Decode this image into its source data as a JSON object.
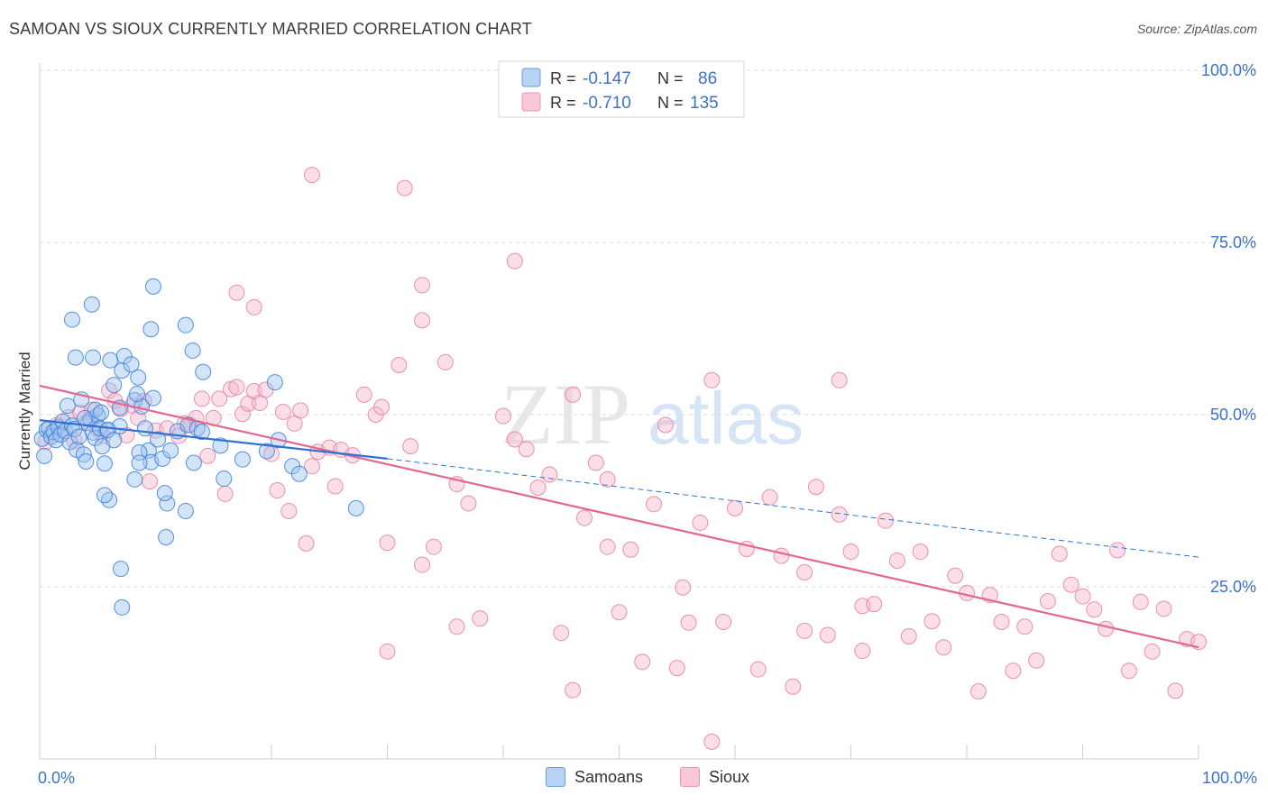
{
  "header": {
    "title": "SAMOAN VS SIOUX CURRENTLY MARRIED CORRELATION CHART",
    "source": "Source: ZipAtlas.com"
  },
  "colors": {
    "samoans_fill": "#9cc3f0",
    "samoans_stroke": "#3b7fd6",
    "samoans_line": "#2f72d0",
    "sioux_fill": "#f7b6cb",
    "sioux_stroke": "#e67fa2",
    "sioux_line": "#e4678f",
    "axis_text": "#3c72c8",
    "grid": "#dddddd"
  },
  "watermark": {
    "part1": "ZIP",
    "part2": "atlas"
  },
  "chart_data": {
    "type": "scatter",
    "title": "SAMOAN VS SIOUX CURRENTLY MARRIED CORRELATION CHART",
    "xlabel": "",
    "ylabel": "Currently Married",
    "xlim": [
      0,
      100
    ],
    "ylim": [
      0,
      100
    ],
    "x_tick_labels": [
      "0.0%",
      "100.0%"
    ],
    "y_ticks": [
      25,
      50,
      75,
      100
    ],
    "y_tick_labels": [
      "25.0%",
      "50.0%",
      "75.0%",
      "100.0%"
    ],
    "grid": true,
    "legend": {
      "placement": "top-center",
      "rows": [
        {
          "series": "Samoans",
          "r_label": "R =",
          "r_value": "-0.147",
          "n_label": "N =",
          "n_value": "86"
        },
        {
          "series": "Sioux",
          "r_label": "R =",
          "r_value": "-0.710",
          "n_label": "N =",
          "n_value": "135"
        }
      ]
    },
    "bottom_legend": [
      "Samoans",
      "Sioux"
    ],
    "series": [
      {
        "name": "Samoans",
        "trend": {
          "x0": 0,
          "y0": 49.2,
          "x1": 30,
          "y1": 43.6,
          "dash_x1": 100,
          "dash_y1": 29.3
        },
        "points": [
          [
            0.2,
            46.5
          ],
          [
            0.4,
            44
          ],
          [
            0.6,
            47.8
          ],
          [
            0.8,
            48
          ],
          [
            1,
            46.8
          ],
          [
            1.2,
            47.5
          ],
          [
            1.4,
            46.3
          ],
          [
            1.6,
            48.2
          ],
          [
            1.8,
            47.1
          ],
          [
            2,
            49
          ],
          [
            2.2,
            47.6
          ],
          [
            2.4,
            51.3
          ],
          [
            2.6,
            46
          ],
          [
            2.8,
            48.4
          ],
          [
            3,
            47.9
          ],
          [
            3.2,
            44.9
          ],
          [
            3.4,
            46.8
          ],
          [
            3.6,
            52.2
          ],
          [
            3.8,
            44.2
          ],
          [
            4,
            43.2
          ],
          [
            4.2,
            48.8
          ],
          [
            4.4,
            49.3
          ],
          [
            4.6,
            47.4
          ],
          [
            4.8,
            46.6
          ],
          [
            5,
            49.9
          ],
          [
            5.2,
            48
          ],
          [
            5.4,
            45.4
          ],
          [
            5.6,
            42.9
          ],
          [
            3.1,
            58.3
          ],
          [
            2.8,
            63.8
          ],
          [
            4.6,
            58.3
          ],
          [
            4.5,
            66
          ],
          [
            4.8,
            50.7
          ],
          [
            5.3,
            50.3
          ],
          [
            5.8,
            47.7
          ],
          [
            6.1,
            57.9
          ],
          [
            6.4,
            54.3
          ],
          [
            6.9,
            51
          ],
          [
            7.1,
            56.4
          ],
          [
            7.3,
            58.5
          ],
          [
            7.9,
            57.3
          ],
          [
            8.2,
            52.1
          ],
          [
            8.5,
            55.4
          ],
          [
            8.8,
            51.2
          ],
          [
            9.1,
            48
          ],
          [
            9.4,
            44.8
          ],
          [
            9.6,
            43.1
          ],
          [
            9.8,
            52.4
          ],
          [
            10.2,
            46.4
          ],
          [
            10.6,
            43.6
          ],
          [
            11.3,
            44.8
          ],
          [
            11.9,
            47.6
          ],
          [
            12.8,
            48.5
          ],
          [
            8.6,
            44.5
          ],
          [
            9.8,
            68.6
          ],
          [
            9.6,
            62.4
          ],
          [
            11,
            37.1
          ],
          [
            10.8,
            38.6
          ],
          [
            10.9,
            32.2
          ],
          [
            12.6,
            36
          ],
          [
            12.6,
            63
          ],
          [
            13.2,
            59.3
          ],
          [
            13.6,
            48
          ],
          [
            14,
            47.5
          ],
          [
            13.3,
            43
          ],
          [
            15.6,
            45.5
          ],
          [
            17.5,
            43.5
          ],
          [
            14.1,
            56.2
          ],
          [
            15.9,
            40.7
          ],
          [
            19.6,
            44.7
          ],
          [
            20.6,
            46.3
          ],
          [
            20.3,
            54.7
          ],
          [
            21.8,
            42.5
          ],
          [
            22.4,
            41.4
          ],
          [
            27.3,
            36.4
          ],
          [
            6,
            37.6
          ],
          [
            5.6,
            38.3
          ],
          [
            7,
            27.6
          ],
          [
            7.1,
            22
          ],
          [
            8.2,
            40.6
          ],
          [
            8.6,
            43
          ],
          [
            6.9,
            48.3
          ],
          [
            5.9,
            47.8
          ],
          [
            3.9,
            49.5
          ],
          [
            6.4,
            46.3
          ],
          [
            8.4,
            53
          ]
        ]
      },
      {
        "name": "Sioux",
        "trend": {
          "x0": 0,
          "y0": 54.2,
          "x1": 100,
          "y1": 16.2
        },
        "points": [
          [
            0.5,
            46
          ],
          [
            1,
            47.4
          ],
          [
            1.5,
            48.5
          ],
          [
            2,
            47.2
          ],
          [
            2.5,
            49.6
          ],
          [
            3,
            46.2
          ],
          [
            3.5,
            50.3
          ],
          [
            4,
            48.8
          ],
          [
            4.5,
            50.7
          ],
          [
            5,
            48
          ],
          [
            5.5,
            46.9
          ],
          [
            6,
            53.5
          ],
          [
            6.5,
            52
          ],
          [
            7,
            50.8
          ],
          [
            7.5,
            47
          ],
          [
            8,
            51.3
          ],
          [
            8.5,
            49.5
          ],
          [
            9,
            52
          ],
          [
            9.5,
            40.3
          ],
          [
            10,
            47.7
          ],
          [
            11,
            48
          ],
          [
            12,
            46.9
          ],
          [
            12.5,
            48.7
          ],
          [
            13,
            48.5
          ],
          [
            13.5,
            49.5
          ],
          [
            14,
            52.3
          ],
          [
            14.5,
            44
          ],
          [
            15,
            49.5
          ],
          [
            15.5,
            52.3
          ],
          [
            16,
            38.5
          ],
          [
            16.5,
            53.7
          ],
          [
            17,
            54
          ],
          [
            17.5,
            50.1
          ],
          [
            18,
            51.6
          ],
          [
            18.5,
            53.4
          ],
          [
            19,
            51.7
          ],
          [
            19.5,
            53.6
          ],
          [
            20,
            44.3
          ],
          [
            20.5,
            39
          ],
          [
            21,
            50.4
          ],
          [
            21.5,
            36
          ],
          [
            22,
            48.7
          ],
          [
            22.5,
            50.6
          ],
          [
            23,
            31.3
          ],
          [
            23.5,
            42.5
          ],
          [
            24,
            44.6
          ],
          [
            25,
            45.2
          ],
          [
            25.5,
            39.6
          ],
          [
            26,
            44.9
          ],
          [
            27,
            44.1
          ],
          [
            28,
            52.9
          ],
          [
            29,
            50
          ],
          [
            29.5,
            51.1
          ],
          [
            30,
            31.4
          ],
          [
            31,
            57.2
          ],
          [
            32,
            45.4
          ],
          [
            33,
            63.7
          ],
          [
            34,
            30.8
          ],
          [
            35,
            57.6
          ],
          [
            36,
            39.9
          ],
          [
            37,
            37.1
          ],
          [
            38,
            20.4
          ],
          [
            40,
            49.8
          ],
          [
            41,
            46.4
          ],
          [
            42,
            45
          ],
          [
            43,
            39.4
          ],
          [
            44,
            41.3
          ],
          [
            45,
            18.3
          ],
          [
            46,
            10
          ],
          [
            47,
            35
          ],
          [
            48,
            43
          ],
          [
            49,
            40.6
          ],
          [
            50,
            21.3
          ],
          [
            51,
            30.4
          ],
          [
            52,
            14.1
          ],
          [
            53,
            37
          ],
          [
            54,
            48.5
          ],
          [
            55,
            13.2
          ],
          [
            56,
            19.8
          ],
          [
            57,
            34.3
          ],
          [
            58,
            55
          ],
          [
            59,
            19.9
          ],
          [
            60,
            36.4
          ],
          [
            61,
            30.5
          ],
          [
            62,
            13
          ],
          [
            63,
            38
          ],
          [
            64,
            29.5
          ],
          [
            65,
            10.5
          ],
          [
            66,
            27.1
          ],
          [
            67,
            39.5
          ],
          [
            68,
            18
          ],
          [
            69,
            35.5
          ],
          [
            70,
            30.1
          ],
          [
            71,
            22.2
          ],
          [
            72,
            22.5
          ],
          [
            73,
            34.6
          ],
          [
            74,
            28.8
          ],
          [
            75,
            17.8
          ],
          [
            76,
            30.1
          ],
          [
            77,
            20
          ],
          [
            78,
            16.2
          ],
          [
            79,
            26.6
          ],
          [
            80,
            24.1
          ],
          [
            81,
            9.8
          ],
          [
            82,
            23.8
          ],
          [
            83,
            19.9
          ],
          [
            84,
            12.8
          ],
          [
            85,
            19.2
          ],
          [
            86,
            14.3
          ],
          [
            87,
            22.9
          ],
          [
            88,
            29.8
          ],
          [
            89,
            25.3
          ],
          [
            90,
            23.6
          ],
          [
            91,
            21.7
          ],
          [
            92,
            18.9
          ],
          [
            93,
            30.3
          ],
          [
            94,
            12.8
          ],
          [
            95,
            22.8
          ],
          [
            96,
            15.6
          ],
          [
            97,
            21.8
          ],
          [
            98,
            9.9
          ],
          [
            99,
            17.4
          ],
          [
            100,
            17
          ],
          [
            41,
            72.3
          ],
          [
            46,
            52.9
          ],
          [
            30,
            15.6
          ],
          [
            33,
            28.2
          ],
          [
            36,
            19.2
          ],
          [
            49,
            30.8
          ],
          [
            66,
            18.6
          ],
          [
            71,
            15.7
          ],
          [
            58,
            2.5
          ],
          [
            23.5,
            84.8
          ],
          [
            31.5,
            82.9
          ],
          [
            33,
            68.8
          ],
          [
            17,
            67.7
          ],
          [
            18.5,
            65.6
          ],
          [
            55.5,
            24.9
          ],
          [
            69,
            55
          ]
        ]
      }
    ]
  }
}
